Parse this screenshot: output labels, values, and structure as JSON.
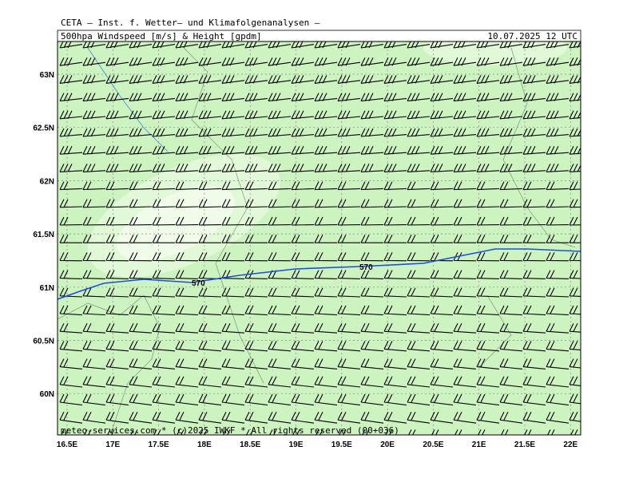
{
  "header": {
    "title": "CETA – Inst. f. Wetter– und Klimafolgenanalysen –",
    "subtitle": "500hpa Windspeed [m/s] & Height [gpdm]",
    "date": "10.07.2025 12 UTC"
  },
  "axes": {
    "y_labels": [
      "63N",
      "62.5N",
      "62N",
      "61.5N",
      "61N",
      "60.5N",
      "60N"
    ],
    "x_labels": [
      "16.5E",
      "17E",
      "17.5E",
      "18E",
      "18.5E",
      "19E",
      "19.5E",
      "20E",
      "20.5E",
      "21E",
      "21.5E",
      "22E"
    ]
  },
  "contour_labels": [
    "570",
    "570"
  ],
  "footer": "meteo-services.com * (c)2025 IWKF * All rights reserved (00+036)"
}
